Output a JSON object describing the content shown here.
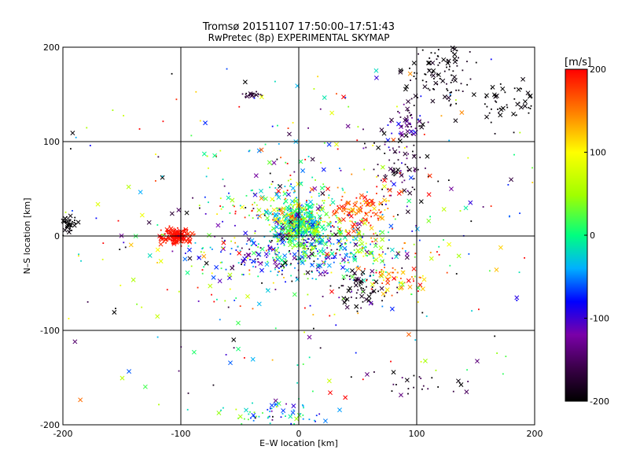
{
  "chart_data": {
    "type": "scatter",
    "title": "Tromsø 20151107 17:50:00–17:51:43",
    "subtitle": "RwPretec (8p) EXPERIMENTAL SKYMAP",
    "xlabel": "E–W location [km]",
    "ylabel": "N–S location [km]",
    "xlim": [
      -200,
      200
    ],
    "ylim": [
      -200,
      200
    ],
    "xticks": [
      -200,
      -100,
      0,
      100,
      200
    ],
    "yticks": [
      -200,
      -100,
      0,
      100,
      200
    ],
    "grid": true,
    "marker_types": [
      "dot",
      "x"
    ],
    "colorbar": {
      "label": "[m/s]",
      "min": -200,
      "max": 200,
      "ticks": [
        -200,
        -100,
        0,
        100,
        200
      ],
      "colormap": [
        "#000000",
        "#3a0048",
        "#7a00a8",
        "#0000ff",
        "#00b0ff",
        "#00ff80",
        "#a0ff00",
        "#ffff00",
        "#ff8000",
        "#ff0000"
      ],
      "colormap_positions": [
        0,
        0.1,
        0.2,
        0.3,
        0.4,
        0.5,
        0.62,
        0.75,
        0.87,
        1
      ]
    },
    "clusters": [
      {
        "x": 0,
        "y": 12,
        "spread": [
          10,
          10
        ],
        "n": 420,
        "v_mean": 5,
        "v_sd": 35
      },
      {
        "x": -3,
        "y": 25,
        "spread": [
          22,
          18
        ],
        "n": 230,
        "v_mean": 30,
        "v_sd": 90
      },
      {
        "x": -5,
        "y": -20,
        "spread": [
          35,
          14
        ],
        "n": 300,
        "v_mean": -60,
        "v_sd": 70
      },
      {
        "x": -103,
        "y": 0,
        "spread": [
          6,
          4
        ],
        "n": 170,
        "v_mean": 195,
        "v_sd": 8
      },
      {
        "x": 50,
        "y": 25,
        "spread": [
          14,
          10
        ],
        "n": 110,
        "v_mean": 170,
        "v_sd": 40
      },
      {
        "x": 45,
        "y": -10,
        "spread": [
          20,
          15
        ],
        "n": 120,
        "v_mean": 10,
        "v_sd": 80
      },
      {
        "x": 50,
        "y": -55,
        "spread": [
          12,
          10
        ],
        "n": 60,
        "v_mean": -190,
        "v_sd": 20
      },
      {
        "x": 85,
        "y": -45,
        "spread": [
          15,
          7
        ],
        "n": 60,
        "v_mean": 140,
        "v_sd": 50
      },
      {
        "x": 90,
        "y": 115,
        "spread": [
          8,
          12
        ],
        "n": 60,
        "v_mean": -150,
        "v_sd": 40
      },
      {
        "x": 85,
        "y": 70,
        "spread": [
          10,
          18
        ],
        "n": 70,
        "v_mean": -170,
        "v_sd": 30
      },
      {
        "x": 120,
        "y": 170,
        "spread": [
          15,
          18
        ],
        "n": 110,
        "v_mean": -195,
        "v_sd": 10
      },
      {
        "x": 175,
        "y": 140,
        "spread": [
          16,
          12
        ],
        "n": 50,
        "v_mean": -200,
        "v_sd": 5
      },
      {
        "x": -195,
        "y": 12,
        "spread": [
          5,
          5
        ],
        "n": 45,
        "v_mean": -200,
        "v_sd": 5
      },
      {
        "x": -20,
        "y": -190,
        "spread": [
          22,
          7
        ],
        "n": 70,
        "v_mean": -40,
        "v_sd": 60
      },
      {
        "x": -40,
        "y": 150,
        "spread": [
          4,
          2
        ],
        "n": 18,
        "v_mean": -170,
        "v_sd": 10
      },
      {
        "x": 100,
        "y": -155,
        "spread": [
          25,
          8
        ],
        "n": 25,
        "v_mean": -190,
        "v_sd": 30
      },
      {
        "x": 0,
        "y": 10,
        "spread": [
          115,
          85
        ],
        "n": 480,
        "v_mean": 0,
        "v_sd": 150
      }
    ],
    "x_marker_fraction": 0.3
  }
}
